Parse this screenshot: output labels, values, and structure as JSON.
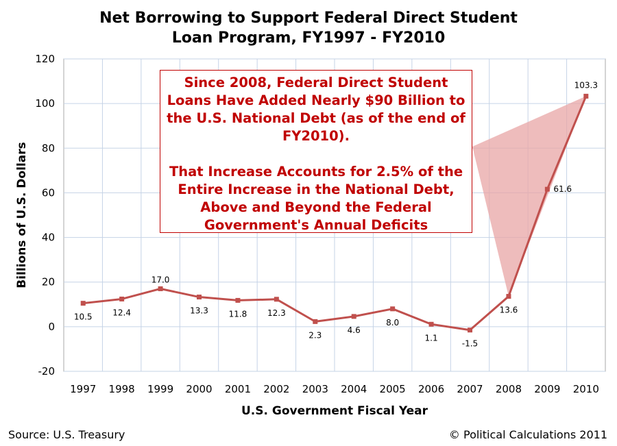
{
  "chart_data": {
    "type": "line",
    "title_lines": [
      "Net Borrowing to Support Federal Direct Student",
      "Loan Program, FY1997 - FY2010"
    ],
    "xlabel": "U.S. Government Fiscal Year",
    "ylabel": "Billions of U.S. Dollars",
    "categories": [
      "1997",
      "1998",
      "1999",
      "2000",
      "2001",
      "2002",
      "2003",
      "2004",
      "2005",
      "2006",
      "2007",
      "2008",
      "2009",
      "2010"
    ],
    "series": [
      {
        "values": [
          10.5,
          12.4,
          17.0,
          13.3,
          11.8,
          12.3,
          2.3,
          4.6,
          8.0,
          1.1,
          -1.5,
          13.6,
          61.6,
          103.3
        ],
        "data_labels": [
          "10.5",
          "12.4",
          "17.0",
          "13.3",
          "11.8",
          "12.3",
          "2.3",
          "4.6",
          "8.0",
          "1.1",
          "-1.5",
          "13.6",
          "61.6",
          "103.3"
        ],
        "color": "#c0504d"
      }
    ],
    "ylim": [
      -20,
      120
    ],
    "yticks": [
      "-20",
      "0",
      "20",
      "40",
      "60",
      "80",
      "100",
      "120"
    ],
    "grid": true,
    "legend": "none",
    "annotation": {
      "paragraphs": [
        "Since 2008, Federal Direct Student Loans Have Added Nearly $90 Billion to the U.S. National Debt (as of the end of FY2010).",
        "That Increase Accounts for 2.5% of the Entire Increase in the National Debt, Above and Beyond the Federal Government's Annual Deficits"
      ],
      "color": "#c00000",
      "callout_color": "#e8a6a6"
    }
  },
  "footer": {
    "source": "Source: U.S. Treasury",
    "credit": "© Political Calculations 2011"
  }
}
